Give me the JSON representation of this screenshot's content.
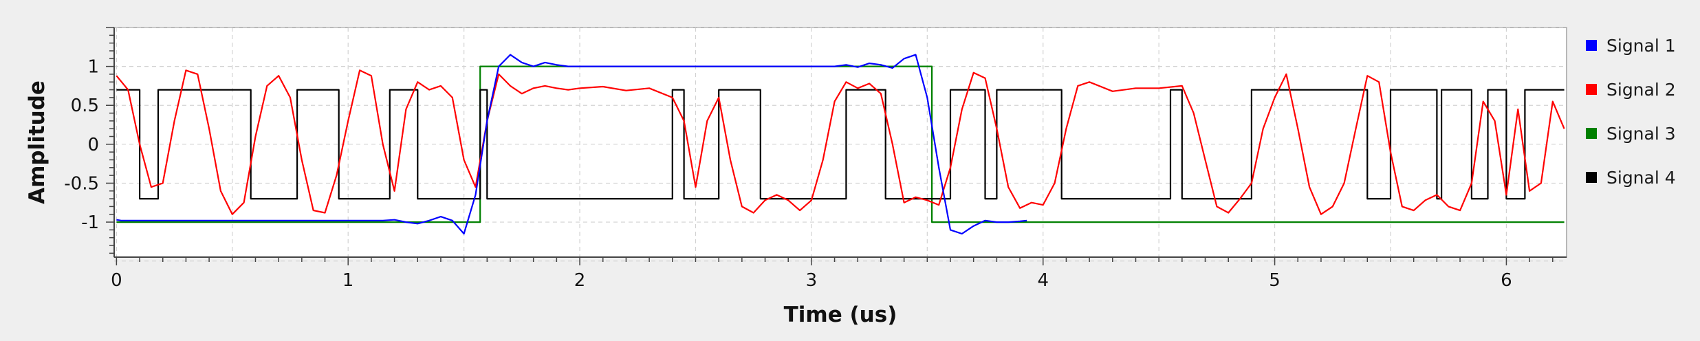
{
  "chart_data": {
    "type": "line",
    "title": "",
    "xlabel": "Time (us)",
    "ylabel": "Amplitude",
    "xlim": [
      -0.01,
      6.26
    ],
    "ylim": [
      -1.45,
      1.5
    ],
    "grid": true,
    "legend_position": "right",
    "x_ticks": [
      0,
      1,
      2,
      3,
      4,
      5,
      6
    ],
    "x_tick_labels": [
      "0",
      "1",
      "2",
      "3",
      "4",
      "5",
      "6"
    ],
    "y_ticks": [
      1,
      0.5,
      0,
      -0.5,
      -1
    ],
    "y_tick_labels": [
      "1",
      "0.5",
      "0",
      "-0.5",
      "-1"
    ],
    "series": [
      {
        "name": "Signal 1",
        "color": "#0000ff"
      },
      {
        "name": "Signal 2",
        "color": "#ff0000"
      },
      {
        "name": "Signal 3",
        "color": "#008000"
      },
      {
        "name": "Signal 4",
        "color": "#000000"
      }
    ],
    "signal3_steps": [
      [
        0,
        -1
      ],
      [
        1.57,
        -1
      ],
      [
        1.57,
        1
      ],
      [
        3.52,
        1
      ],
      [
        3.52,
        -1
      ],
      [
        6.25,
        -1
      ]
    ],
    "signal4_levels": [
      0.7,
      -0.7
    ],
    "signal4_transitions": [
      0,
      0.1,
      0.18,
      0.58,
      0.78,
      0.96,
      1.18,
      1.3,
      1.6,
      1.57,
      2.4,
      2.45,
      2.6,
      2.78,
      3.15,
      3.32,
      3.6,
      3.75,
      3.8,
      4.08,
      4.55,
      4.6,
      4.9,
      5.4,
      5.5,
      5.7,
      5.72,
      5.85,
      5.92,
      6.0,
      6.08,
      6.25
    ],
    "signal1": {
      "x": [
        0,
        0.02,
        1.15,
        1.2,
        1.25,
        1.3,
        1.35,
        1.4,
        1.45,
        1.5,
        1.55,
        1.6,
        1.65,
        1.7,
        1.75,
        1.8,
        1.85,
        1.9,
        1.95,
        3.1,
        3.15,
        3.2,
        3.25,
        3.3,
        3.35,
        3.4,
        3.45,
        3.5,
        3.55,
        3.6,
        3.65,
        3.7,
        3.75,
        3.8,
        3.85,
        3.9,
        3.93
      ],
      "y": [
        -0.97,
        -0.98,
        -0.98,
        -0.97,
        -1.0,
        -1.02,
        -0.98,
        -0.93,
        -0.98,
        -1.15,
        -0.65,
        0.3,
        1.0,
        1.15,
        1.05,
        1.0,
        1.05,
        1.02,
        1.0,
        1.0,
        1.02,
        0.99,
        1.04,
        1.02,
        0.98,
        1.1,
        1.15,
        0.6,
        -0.3,
        -1.1,
        -1.15,
        -1.05,
        -0.98,
        -1.0,
        -1.0,
        -0.99,
        -0.98
      ]
    },
    "signal2": {
      "x": [
        0,
        0.05,
        0.1,
        0.15,
        0.2,
        0.25,
        0.3,
        0.35,
        0.4,
        0.45,
        0.5,
        0.55,
        0.6,
        0.65,
        0.7,
        0.75,
        0.8,
        0.85,
        0.9,
        0.95,
        1.0,
        1.05,
        1.1,
        1.15,
        1.2,
        1.25,
        1.3,
        1.35,
        1.4,
        1.45,
        1.5,
        1.55,
        1.6,
        1.65,
        1.7,
        1.75,
        1.8,
        1.85,
        1.9,
        1.95,
        2.0,
        2.1,
        2.2,
        2.3,
        2.4,
        2.45,
        2.5,
        2.55,
        2.6,
        2.65,
        2.7,
        2.75,
        2.8,
        2.85,
        2.9,
        2.95,
        3.0,
        3.05,
        3.1,
        3.15,
        3.2,
        3.25,
        3.3,
        3.35,
        3.4,
        3.45,
        3.5,
        3.55,
        3.6,
        3.65,
        3.7,
        3.75,
        3.8,
        3.85,
        3.9,
        3.95,
        4.0,
        4.05,
        4.1,
        4.15,
        4.2,
        4.3,
        4.4,
        4.5,
        4.6,
        4.65,
        4.7,
        4.75,
        4.8,
        4.85,
        4.9,
        4.95,
        5.0,
        5.05,
        5.1,
        5.15,
        5.2,
        5.25,
        5.3,
        5.35,
        5.4,
        5.45,
        5.5,
        5.55,
        5.6,
        5.65,
        5.7,
        5.75,
        5.8,
        5.85,
        5.9,
        5.95,
        6.0,
        6.05,
        6.1,
        6.15,
        6.2,
        6.25
      ],
      "y": [
        0.88,
        0.7,
        0.0,
        -0.55,
        -0.5,
        0.3,
        0.95,
        0.9,
        0.2,
        -0.6,
        -0.9,
        -0.75,
        0.1,
        0.75,
        0.88,
        0.6,
        -0.2,
        -0.85,
        -0.88,
        -0.4,
        0.3,
        0.95,
        0.88,
        0.0,
        -0.6,
        0.45,
        0.8,
        0.7,
        0.75,
        0.6,
        -0.2,
        -0.55,
        0.3,
        0.9,
        0.75,
        0.65,
        0.72,
        0.75,
        0.72,
        0.7,
        0.72,
        0.74,
        0.69,
        0.72,
        0.6,
        0.3,
        -0.55,
        0.3,
        0.6,
        -0.2,
        -0.8,
        -0.88,
        -0.72,
        -0.65,
        -0.72,
        -0.85,
        -0.72,
        -0.2,
        0.55,
        0.8,
        0.72,
        0.78,
        0.65,
        0.0,
        -0.75,
        -0.68,
        -0.72,
        -0.78,
        -0.3,
        0.45,
        0.92,
        0.85,
        0.2,
        -0.55,
        -0.82,
        -0.75,
        -0.78,
        -0.5,
        0.2,
        0.75,
        0.8,
        0.68,
        0.72,
        0.72,
        0.75,
        0.4,
        -0.2,
        -0.8,
        -0.88,
        -0.7,
        -0.5,
        0.2,
        0.6,
        0.9,
        0.2,
        -0.55,
        -0.9,
        -0.8,
        -0.5,
        0.2,
        0.88,
        0.8,
        -0.1,
        -0.8,
        -0.85,
        -0.72,
        -0.65,
        -0.8,
        -0.85,
        -0.5,
        0.55,
        0.3,
        -0.65,
        0.45,
        -0.6,
        -0.5,
        0.55,
        0.2
      ]
    }
  }
}
